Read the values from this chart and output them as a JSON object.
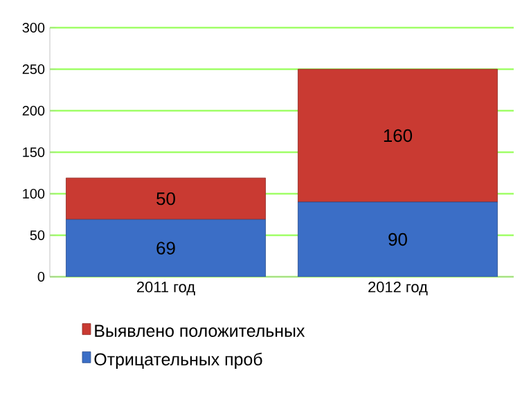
{
  "chart_data": {
    "type": "bar",
    "stacked": true,
    "categories": [
      "2011 год",
      "2012 год"
    ],
    "series": [
      {
        "name": "Отрицательных проб",
        "color": "#3b6ec6",
        "values": [
          69,
          90
        ]
      },
      {
        "name": "Выявлено положительных",
        "color": "#c93a32",
        "values": [
          50,
          160
        ]
      }
    ],
    "ylim": [
      0,
      300
    ],
    "yticks": [
      0,
      50,
      100,
      150,
      200,
      250,
      300
    ],
    "grid": "y",
    "legend": "bottom",
    "data_labels": true
  }
}
